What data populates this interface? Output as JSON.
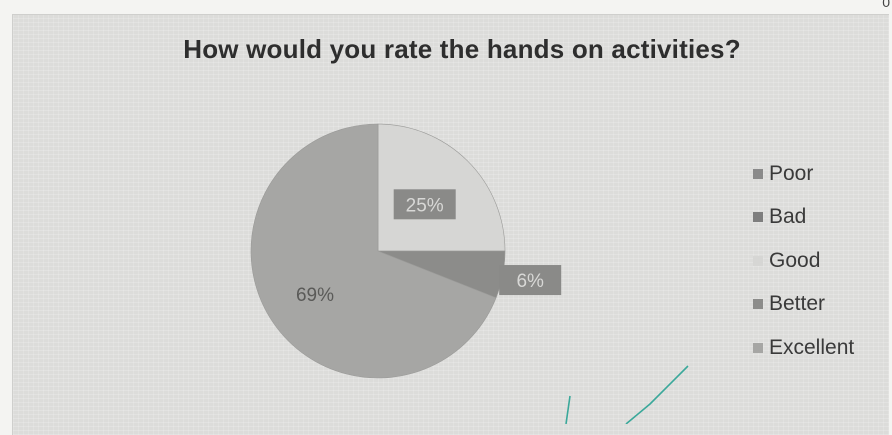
{
  "chart_data": {
    "type": "pie",
    "title": "How would you rate the hands on activities?",
    "categories": [
      "Poor",
      "Bad",
      "Good",
      "Better",
      "Excellent"
    ],
    "values": [
      0,
      0,
      25,
      6,
      69
    ],
    "labels": [
      "",
      "",
      "25%",
      "6%",
      "69%"
    ],
    "colors": [
      "#8a8a8a",
      "#7e7e7e",
      "#d6d6d4",
      "#8c8c8a",
      "#a6a6a4"
    ],
    "legend_position": "right"
  },
  "corner_text": "0"
}
